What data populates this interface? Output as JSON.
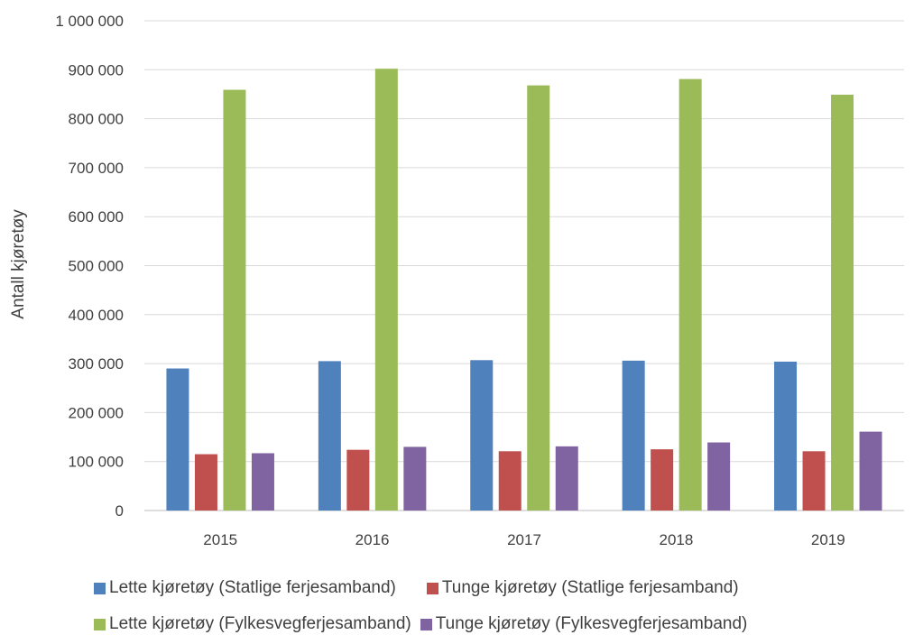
{
  "chart_data": {
    "type": "bar",
    "title": "",
    "xlabel": "",
    "ylabel": "Antall kjøretøy",
    "ylim": [
      0,
      1000000
    ],
    "y_ticks": [
      "0",
      "100 000",
      "200 000",
      "300 000",
      "400 000",
      "500 000",
      "600 000",
      "700 000",
      "800 000",
      "900 000",
      "1 000 000"
    ],
    "grid": true,
    "legend_position": "bottom",
    "categories": [
      "2015",
      "2016",
      "2017",
      "2018",
      "2019"
    ],
    "series": [
      {
        "name": "Lette kjøretøy (Statlige ferjesamband)",
        "color": "#4F81BD",
        "values": [
          290000,
          305000,
          307000,
          306000,
          304000
        ]
      },
      {
        "name": "Tunge kjøretøy (Statlige ferjesamband)",
        "color": "#C0504D",
        "values": [
          115000,
          124000,
          121000,
          125000,
          121000
        ]
      },
      {
        "name": "Lette kjøretøy (Fylkesvegferjesamband)",
        "color": "#9BBB59",
        "values": [
          859000,
          902000,
          868000,
          881000,
          849000
        ]
      },
      {
        "name": "Tunge kjøretøy (Fylkesvegferjesamband)",
        "color": "#8064A2",
        "values": [
          117000,
          130000,
          131000,
          139000,
          161000
        ]
      }
    ]
  }
}
